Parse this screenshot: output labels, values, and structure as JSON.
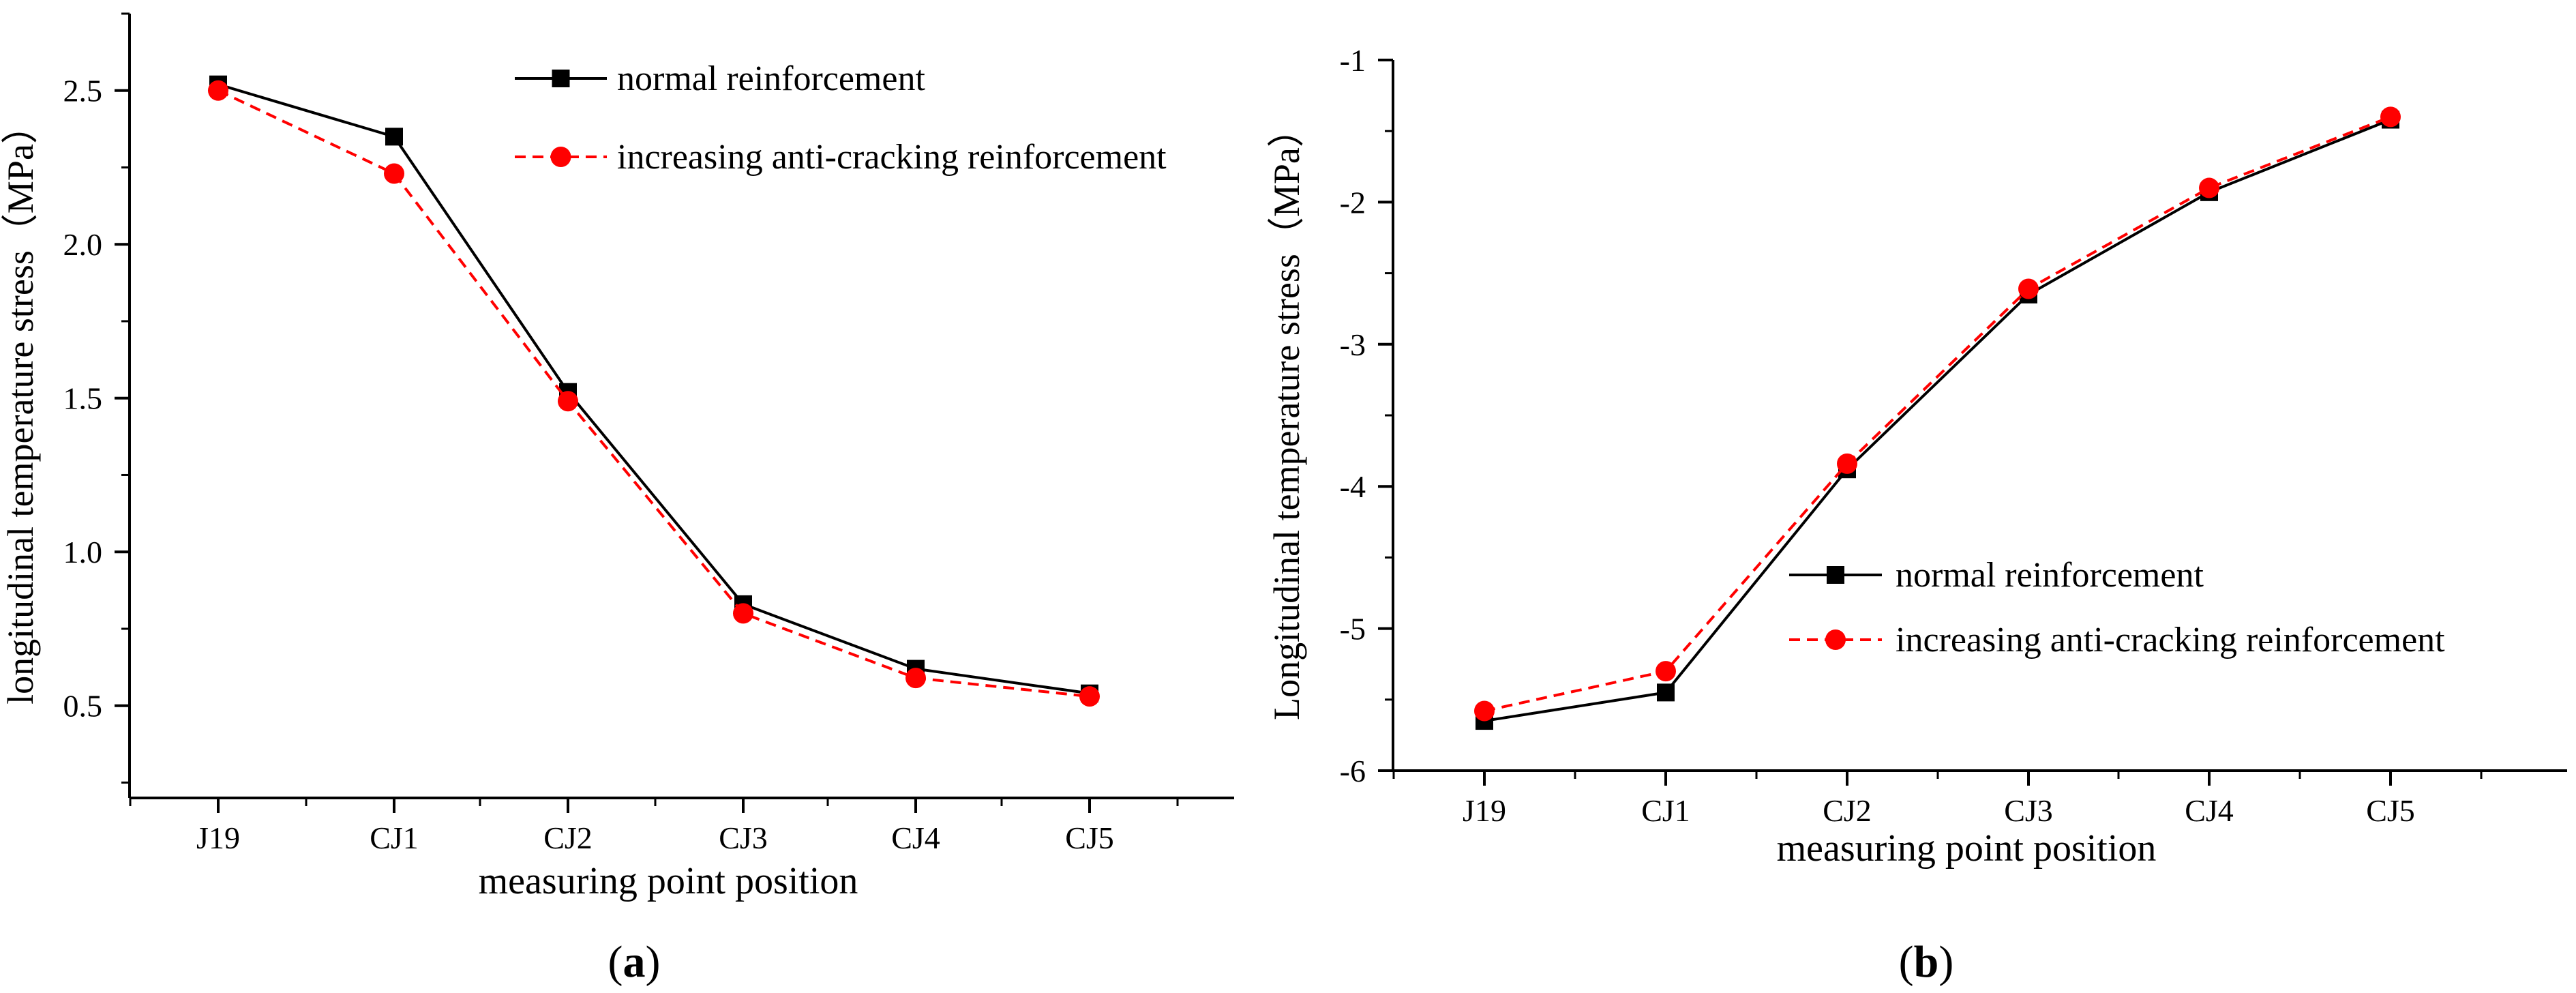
{
  "colors": {
    "series_normal": "#000000",
    "series_anti": "#ff0000",
    "axis": "#000000",
    "background": "#ffffff"
  },
  "chart_data": [
    {
      "panel_label": "(a)",
      "panel_letter": "a",
      "type": "line",
      "title": "",
      "xlabel": "measuring point position",
      "ylabel": "longitudinal temperature stress（MPa）",
      "categories": [
        "J19",
        "CJ1",
        "CJ2",
        "CJ3",
        "CJ4",
        "CJ5"
      ],
      "ylim": [
        0.2,
        2.75
      ],
      "yticks": [
        0.5,
        1.0,
        1.5,
        2.0,
        2.5
      ],
      "ytick_labels": [
        "0.5",
        "1.0",
        "1.5",
        "2.0",
        "2.5"
      ],
      "grid": false,
      "legend_position": "top-right",
      "series": [
        {
          "name": "normal reinforcement",
          "marker": "square",
          "line": "solid",
          "color": "#000000",
          "values": [
            2.52,
            2.35,
            1.52,
            0.83,
            0.62,
            0.54
          ]
        },
        {
          "name": "increasing anti-cracking reinforcement",
          "marker": "circle",
          "line": "dashed",
          "color": "#ff0000",
          "values": [
            2.5,
            2.23,
            1.49,
            0.8,
            0.59,
            0.53
          ]
        }
      ]
    },
    {
      "panel_label": "(b)",
      "panel_letter": "b",
      "type": "line",
      "title": "",
      "xlabel": "measuring point position",
      "ylabel": "Longitudinal temperature stress（MPa）",
      "categories": [
        "J19",
        "CJ1",
        "CJ2",
        "CJ3",
        "CJ4",
        "CJ5"
      ],
      "ylim": [
        -6,
        -1
      ],
      "yticks": [
        -6,
        -5,
        -4,
        -3,
        -2,
        -1
      ],
      "ytick_labels": [
        "-6",
        "-5",
        "-4",
        "-3",
        "-2",
        "-1"
      ],
      "grid": false,
      "legend_position": "center-right",
      "series": [
        {
          "name": "normal reinforcement",
          "marker": "square",
          "line": "solid",
          "color": "#000000",
          "values": [
            -5.65,
            -5.45,
            -3.88,
            -2.65,
            -1.93,
            -1.42
          ]
        },
        {
          "name": "increasing anti-cracking reinforcement",
          "marker": "circle",
          "line": "dashed",
          "color": "#ff0000",
          "values": [
            -5.58,
            -5.3,
            -3.84,
            -2.61,
            -1.9,
            -1.4
          ]
        }
      ]
    }
  ]
}
